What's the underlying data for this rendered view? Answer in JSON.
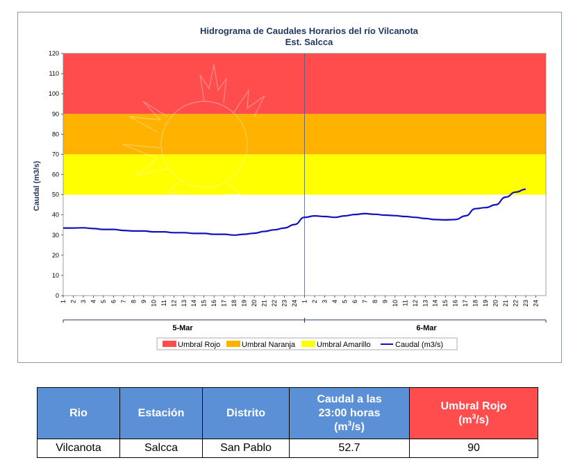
{
  "chart_data": {
    "type": "line",
    "title": "Hidrograma de Caudales Horarios del río Vilcanota",
    "subtitle": "Est. Salcca",
    "ylabel": "Caudal  (m3/s)",
    "ylim": [
      0,
      120
    ],
    "yticks": [
      0,
      10,
      20,
      30,
      40,
      50,
      60,
      70,
      80,
      90,
      100,
      110,
      120
    ],
    "grid": false,
    "legend_position": "bottom",
    "days": [
      "5-Mar",
      "6-Mar"
    ],
    "hour_ticks": [
      "1",
      "2",
      "3",
      "4",
      "5",
      "6",
      "7",
      "8",
      "9",
      "10",
      "11",
      "12",
      "13",
      "14",
      "15",
      "16",
      "17",
      "18",
      "19",
      "20",
      "21",
      "22",
      "23",
      "24"
    ],
    "bands": [
      {
        "name": "Umbral Rojo",
        "from": 90,
        "to": 120,
        "color": "#ff4d4d"
      },
      {
        "name": "Umbral Naranja",
        "from": 70,
        "to": 90,
        "color": "#ffb300"
      },
      {
        "name": "Umbral Amarillo",
        "from": 50,
        "to": 70,
        "color": "#ffff00"
      }
    ],
    "series": [
      {
        "name": "Caudal (m3/s)",
        "color": "#1010c0",
        "day1": [
          33.5,
          33.5,
          33.6,
          33.2,
          32.8,
          32.8,
          32.3,
          32.0,
          32.0,
          31.6,
          31.6,
          31.2,
          31.2,
          30.8,
          30.8,
          30.4,
          30.4,
          30.0,
          30.4,
          30.9,
          31.8,
          32.6,
          33.5,
          35.2
        ],
        "day2": [
          38.8,
          39.5,
          39.2,
          38.8,
          39.5,
          40.2,
          40.6,
          40.3,
          39.9,
          39.6,
          39.2,
          38.8,
          38.2,
          37.7,
          37.5,
          37.7,
          39.5,
          43.1,
          43.6,
          45.0,
          48.8,
          51.3,
          52.7
        ]
      }
    ]
  },
  "legend": {
    "rojo": "Umbral Rojo",
    "naranja": "Umbral Naranja",
    "amarillo": "Umbral Amarillo",
    "caudal": "Caudal (m3/s)"
  },
  "table": {
    "headers": {
      "rio": "Rio",
      "estacion": "Estación",
      "distrito": "Distrito",
      "caudal_line1": "Caudal a las",
      "caudal_line2": "23:00 horas",
      "caudal_line3_pre": "(m",
      "caudal_line3_sup": "3",
      "caudal_line3_post": "/s)",
      "umbral_line1": "Umbral Rojo",
      "umbral_line2_pre": "(m",
      "umbral_line2_sup": "3",
      "umbral_line2_post": "/s)"
    },
    "row": {
      "rio": "Vilcanota",
      "estacion": "Salcca",
      "distrito": "San Pablo",
      "caudal": "52.7",
      "umbral": "90"
    },
    "colors": {
      "header_blue": "#5b8fd6",
      "header_red": "#ff4d4d"
    }
  }
}
